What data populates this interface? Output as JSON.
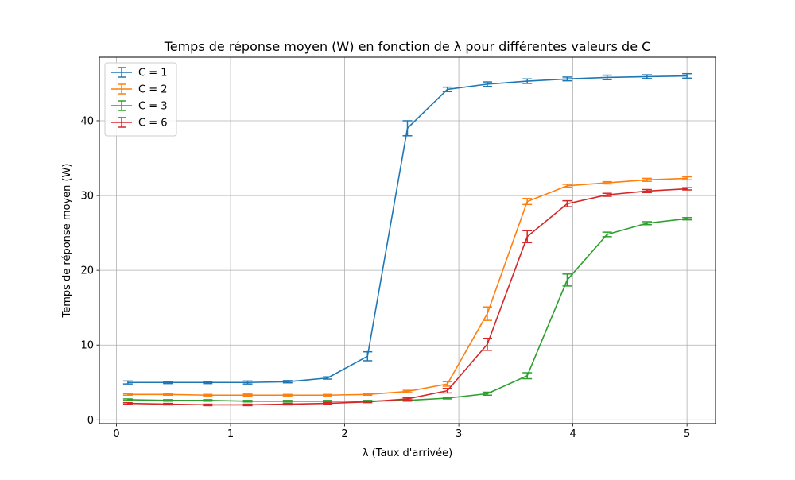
{
  "chart_data": {
    "type": "line",
    "title": "Temps de réponse moyen (W) en fonction de λ pour différentes valeurs de C",
    "xlabel": "λ (Taux d'arrivée)",
    "ylabel": "Temps de réponse moyen (W)",
    "xlim": [
      -0.15,
      5.25
    ],
    "ylim": [
      -0.5,
      48.5
    ],
    "xticks": [
      0,
      1,
      2,
      3,
      4,
      5
    ],
    "yticks": [
      0,
      10,
      20,
      30,
      40
    ],
    "grid": true,
    "legend_position": "top-left",
    "error_bars": true,
    "x": [
      0.1,
      0.45,
      0.8,
      1.15,
      1.5,
      1.85,
      2.2,
      2.55,
      2.9,
      3.25,
      3.6,
      3.95,
      4.3,
      4.65,
      5.0
    ],
    "series": [
      {
        "name": "C = 1",
        "color": "#1f77b4",
        "values": [
          5.0,
          5.0,
          5.0,
          5.0,
          5.1,
          5.6,
          8.5,
          39.0,
          44.2,
          44.9,
          45.3,
          45.6,
          45.8,
          45.9,
          46.0
        ],
        "errors": [
          0.2,
          0.15,
          0.15,
          0.2,
          0.15,
          0.15,
          0.6,
          1.0,
          0.3,
          0.3,
          0.3,
          0.25,
          0.3,
          0.25,
          0.3
        ]
      },
      {
        "name": "C = 2",
        "color": "#ff7f0e",
        "values": [
          3.4,
          3.4,
          3.3,
          3.3,
          3.3,
          3.3,
          3.4,
          3.8,
          4.8,
          14.2,
          29.2,
          31.3,
          31.7,
          32.1,
          32.3
        ],
        "errors": [
          0.1,
          0.1,
          0.1,
          0.15,
          0.1,
          0.1,
          0.1,
          0.15,
          0.3,
          0.9,
          0.4,
          0.2,
          0.15,
          0.2,
          0.2
        ]
      },
      {
        "name": "C = 3",
        "color": "#2ca02c",
        "values": [
          2.7,
          2.6,
          2.6,
          2.5,
          2.5,
          2.5,
          2.5,
          2.6,
          2.9,
          3.5,
          5.9,
          18.7,
          24.8,
          26.3,
          26.9
        ],
        "errors": [
          0.1,
          0.1,
          0.1,
          0.1,
          0.1,
          0.1,
          0.1,
          0.1,
          0.1,
          0.2,
          0.4,
          0.8,
          0.3,
          0.2,
          0.15
        ]
      },
      {
        "name": "C = 6",
        "color": "#d62728",
        "values": [
          2.2,
          2.1,
          2.0,
          2.0,
          2.1,
          2.2,
          2.4,
          2.8,
          3.9,
          10.1,
          24.5,
          28.9,
          30.1,
          30.6,
          30.9
        ],
        "errors": [
          0.1,
          0.1,
          0.1,
          0.1,
          0.1,
          0.1,
          0.1,
          0.15,
          0.3,
          0.8,
          0.8,
          0.4,
          0.2,
          0.2,
          0.15
        ]
      }
    ]
  }
}
